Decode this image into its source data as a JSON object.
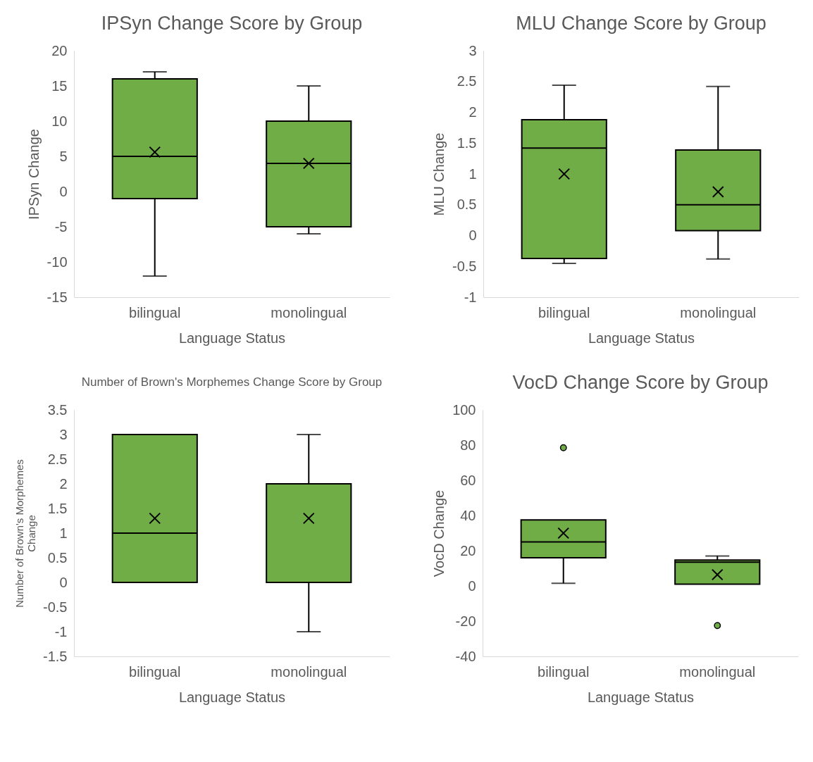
{
  "chart_data": [
    {
      "type": "box",
      "title": "IPSyn Change Score by Group",
      "xlabel": "Language Status",
      "ylabel": "IPSyn Change",
      "categories": [
        "bilingual",
        "monolingual"
      ],
      "color": "#70ad47",
      "ylim": [
        -15,
        20
      ],
      "yticks": [
        -15,
        -10,
        -5,
        0,
        5,
        10,
        15,
        20
      ],
      "boxes": [
        {
          "low": -12,
          "q1": -1,
          "median": 5,
          "q3": 16,
          "high": 17,
          "mean": 5.6
        },
        {
          "low": -6,
          "q1": -5,
          "median": 4,
          "q3": 10,
          "high": 15,
          "mean": 4
        }
      ]
    },
    {
      "type": "box",
      "title": "MLU Change Score by Group",
      "xlabel": "Language Status",
      "ylabel": "MLU Change",
      "categories": [
        "bilingual",
        "monolingual"
      ],
      "color": "#70ad47",
      "ylim": [
        -1,
        3
      ],
      "yticks": [
        -1,
        -0.5,
        0,
        0.5,
        1,
        1.5,
        2,
        2.5,
        3
      ],
      "boxes": [
        {
          "low": -0.45,
          "q1": -0.37,
          "median": 1.42,
          "q3": 1.88,
          "high": 2.44,
          "mean": 1.0
        },
        {
          "low": -0.38,
          "q1": 0.08,
          "median": 0.5,
          "q3": 1.39,
          "high": 2.42,
          "mean": 0.71
        }
      ]
    },
    {
      "type": "box",
      "title": "Number of Brown's Morphemes Change Score by Group",
      "xlabel": "Language Status",
      "ylabel": "Number of Brown's Morphemes Change",
      "categories": [
        "bilingual",
        "monolingual"
      ],
      "color": "#70ad47",
      "ylim": [
        -1.5,
        3.5
      ],
      "yticks": [
        -1.5,
        -1,
        -0.5,
        0,
        0.5,
        1,
        1.5,
        2,
        2.5,
        3,
        3.5
      ],
      "boxes": [
        {
          "low": 0,
          "q1": 0,
          "median": 1,
          "q3": 3,
          "high": 3,
          "mean": 1.3
        },
        {
          "low": -1,
          "q1": 0,
          "median": 2,
          "q3": 2,
          "high": 3,
          "mean": 1.3
        }
      ]
    },
    {
      "type": "box",
      "title": "VocD Change Score by Group",
      "xlabel": "Language Status",
      "ylabel": "VocD Change",
      "categories": [
        "bilingual",
        "monolingual"
      ],
      "color": "#70ad47",
      "ylim": [
        -40,
        100
      ],
      "yticks": [
        -40,
        -20,
        0,
        20,
        40,
        60,
        80,
        100
      ],
      "boxes": [
        {
          "low": 1.5,
          "q1": 16,
          "median": 25,
          "q3": 37.5,
          "high": 37.5,
          "mean": 30,
          "outliers": [
            78.5
          ]
        },
        {
          "low": 1,
          "q1": 1,
          "median": 13.5,
          "q3": 14.7,
          "high": 17,
          "mean": 6.4,
          "outliers": [
            -22.5
          ]
        }
      ]
    }
  ]
}
